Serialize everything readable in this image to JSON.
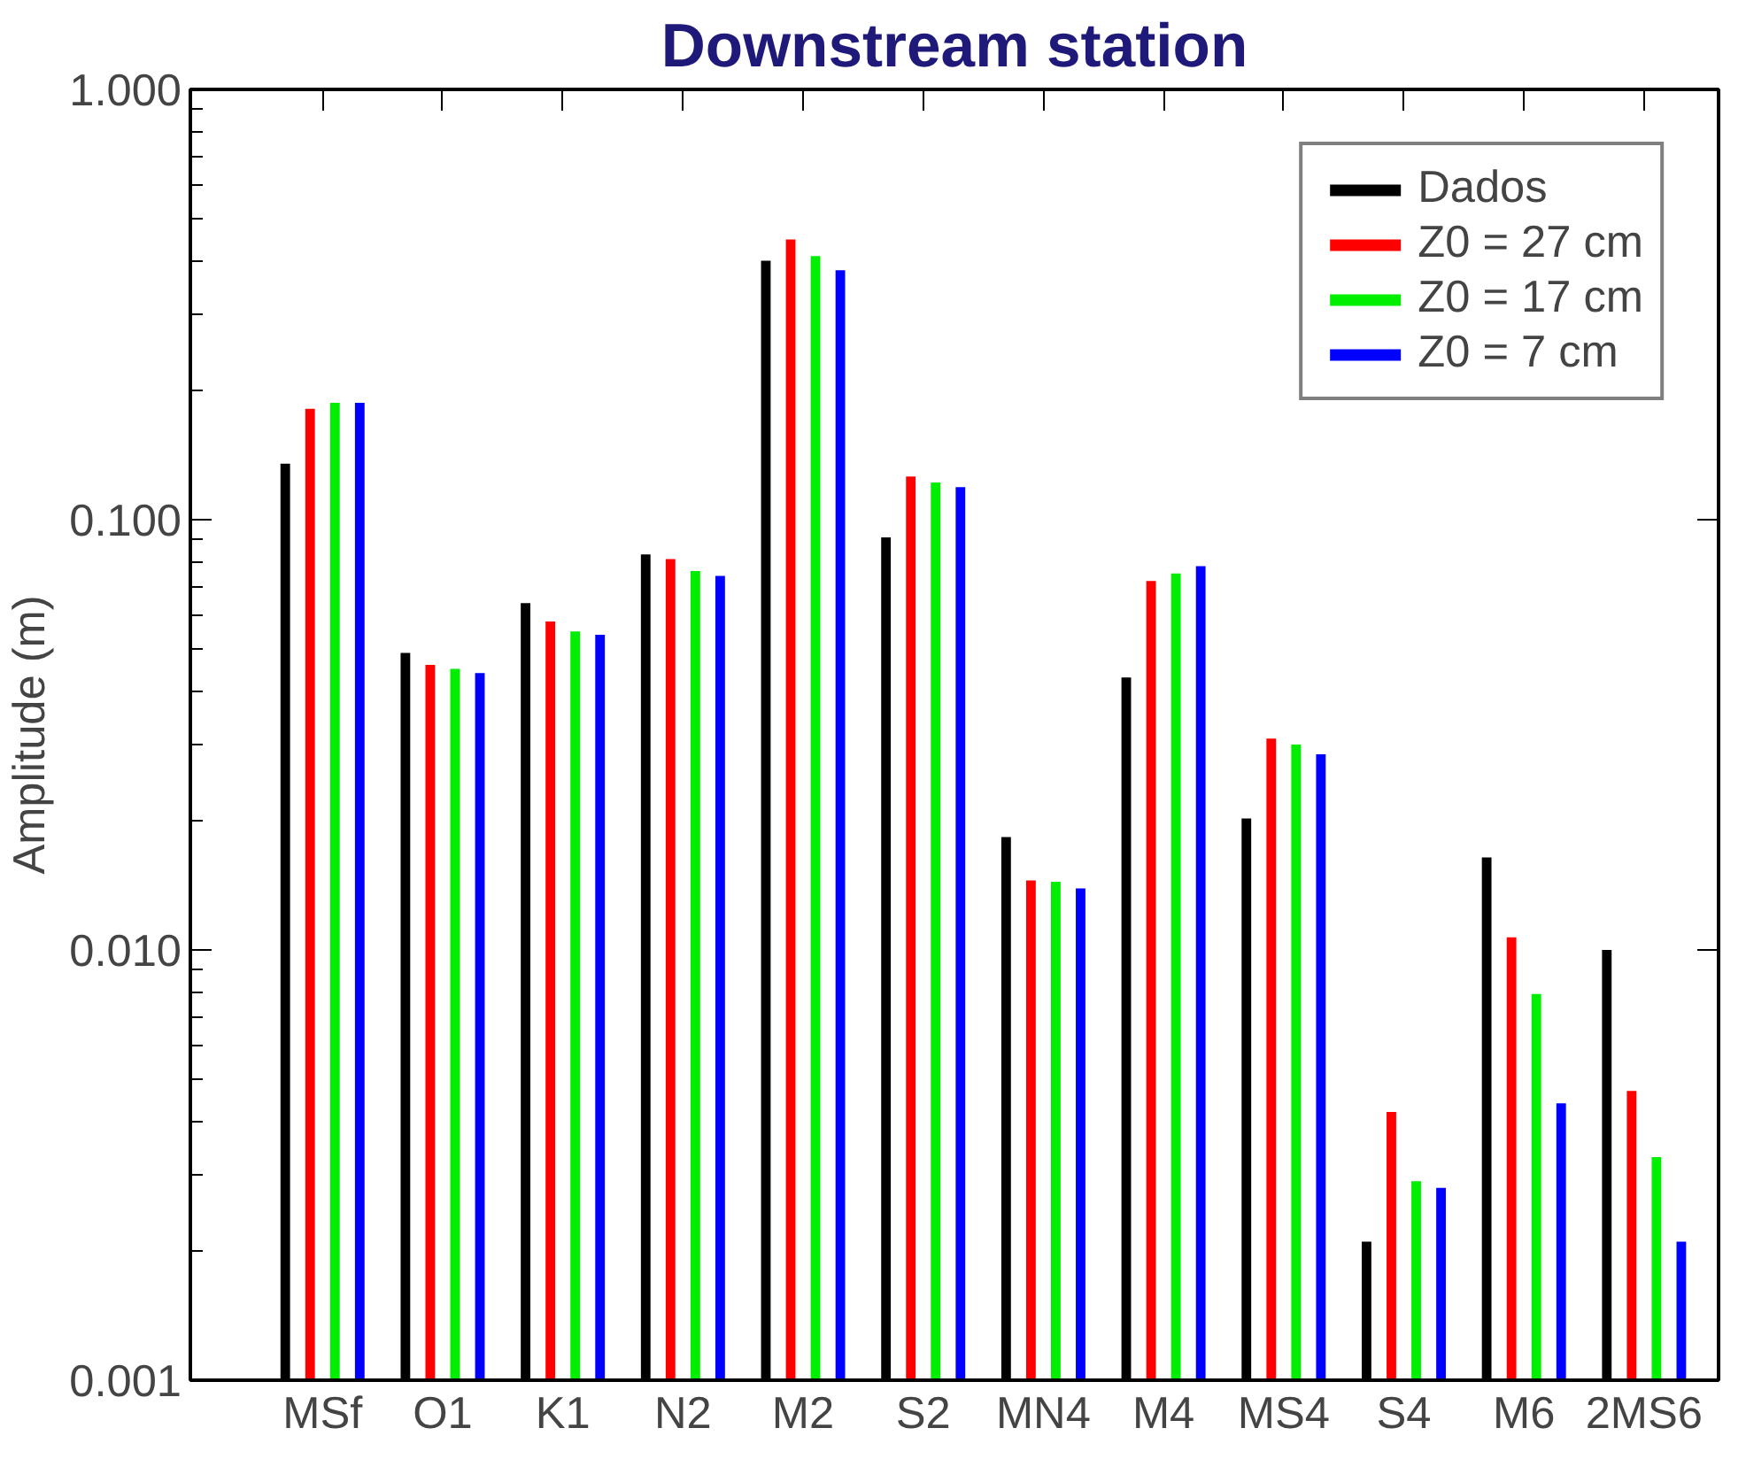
{
  "chart_data": {
    "type": "bar",
    "title": "Downstream station",
    "ylabel": "Amplitude (m)",
    "categories": [
      "MSf",
      "O1",
      "K1",
      "N2",
      "M2",
      "S2",
      "MN4",
      "M4",
      "MS4",
      "S4",
      "M6",
      "2MS6"
    ],
    "series": [
      {
        "name": "Dados",
        "color": "#000000",
        "values": [
          0.135,
          0.049,
          0.064,
          0.083,
          0.4,
          0.091,
          0.0183,
          0.043,
          0.0202,
          0.0021,
          0.0164,
          0.01
        ]
      },
      {
        "name": "Z0 = 27 cm",
        "color": "#ff0000",
        "values": [
          0.181,
          0.046,
          0.058,
          0.081,
          0.448,
          0.126,
          0.0145,
          0.072,
          0.031,
          0.0042,
          0.0107,
          0.0047
        ]
      },
      {
        "name": "Z0 = 17 cm",
        "color": "#00ee00",
        "values": [
          0.187,
          0.045,
          0.055,
          0.076,
          0.41,
          0.122,
          0.0144,
          0.075,
          0.03,
          0.0029,
          0.0079,
          0.0033
        ]
      },
      {
        "name": "Z0 = 7 cm",
        "color": "#0000ff",
        "values": [
          0.187,
          0.044,
          0.054,
          0.074,
          0.38,
          0.119,
          0.0139,
          0.078,
          0.0285,
          0.0028,
          0.0044,
          0.0021
        ]
      }
    ],
    "log": "y",
    "ylim": [
      0.001,
      1.0
    ],
    "yticks": [
      {
        "value": 0.001,
        "label": "0.001"
      },
      {
        "value": 0.01,
        "label": "0.010"
      },
      {
        "value": 0.1,
        "label": "0.100"
      },
      {
        "value": 1.0,
        "label": "1.000"
      }
    ],
    "grid": false,
    "legend": "top right"
  }
}
